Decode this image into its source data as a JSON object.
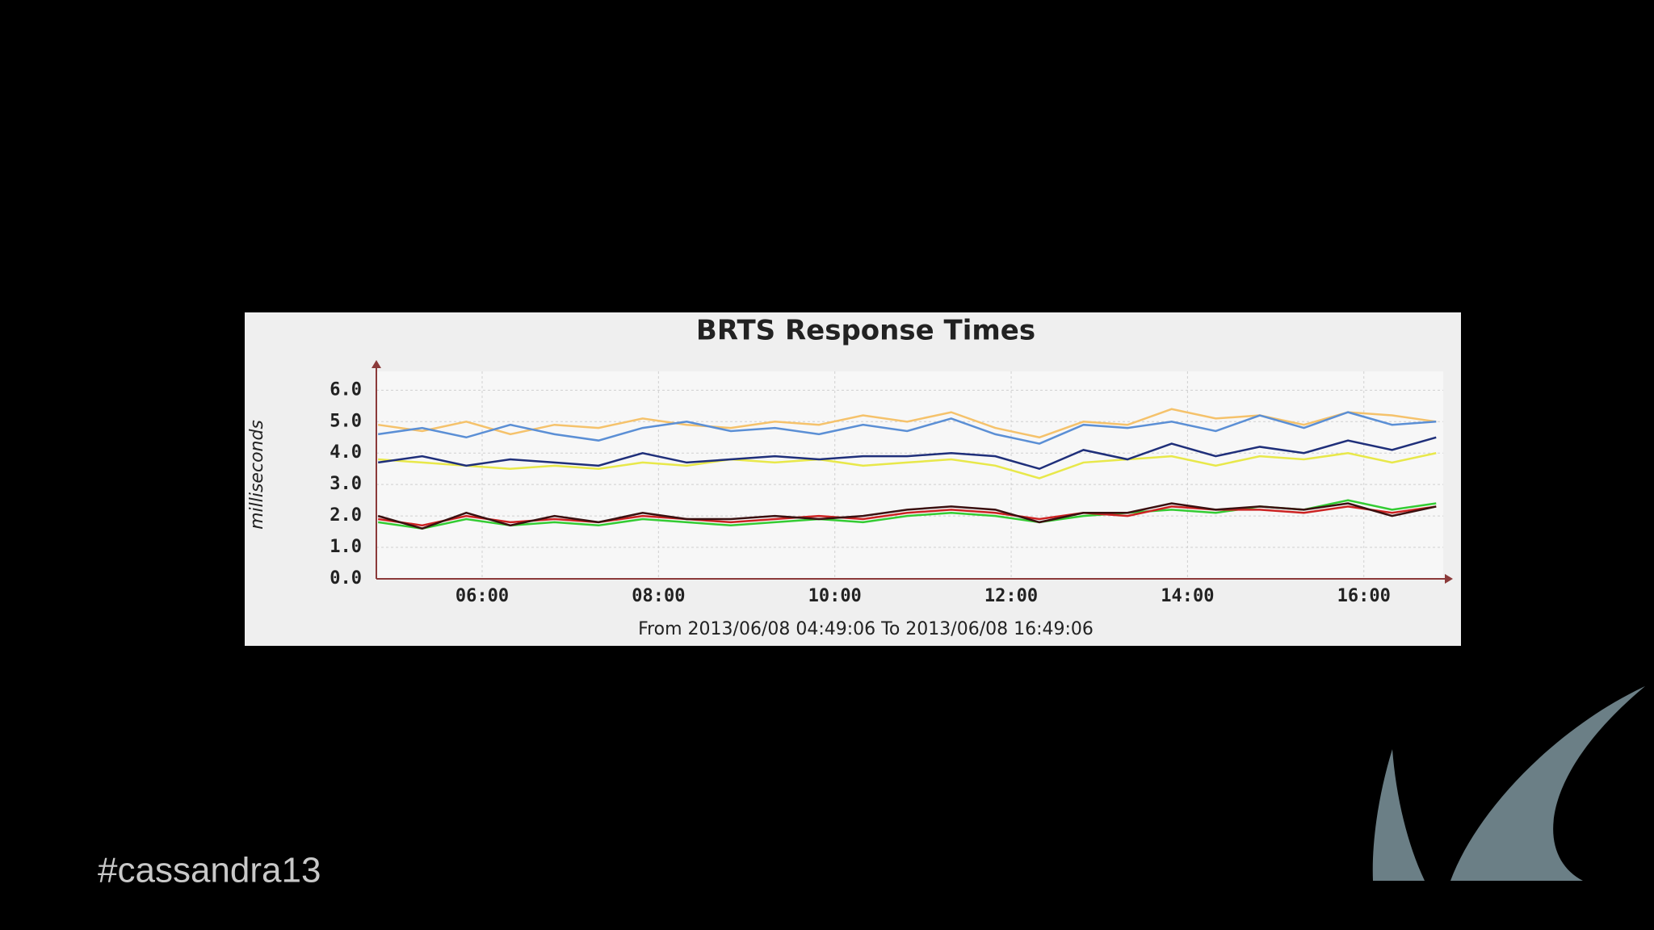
{
  "chart_data": {
    "type": "line",
    "title": "BRTS Response Times",
    "subtitle": "From 2013/06/08 04:49:06 To 2013/06/08 16:49:06",
    "ylabel": "milliseconds",
    "x": [
      4.82,
      5.32,
      5.82,
      6.32,
      6.82,
      7.32,
      7.82,
      8.32,
      8.82,
      9.32,
      9.82,
      10.32,
      10.82,
      11.32,
      11.82,
      12.32,
      12.82,
      13.32,
      13.82,
      14.32,
      14.82,
      15.32,
      15.82,
      16.32,
      16.82
    ],
    "series": [
      {
        "color": "#f5c26b",
        "values": [
          4.9,
          4.7,
          5.0,
          4.6,
          4.9,
          4.8,
          5.1,
          4.9,
          4.8,
          5.0,
          4.9,
          5.2,
          5.0,
          5.3,
          4.8,
          4.5,
          5.0,
          4.9,
          5.4,
          5.1,
          5.2,
          4.9,
          5.3,
          5.2,
          5.0
        ]
      },
      {
        "color": "#5b8fd5",
        "values": [
          4.6,
          4.8,
          4.5,
          4.9,
          4.6,
          4.4,
          4.8,
          5.0,
          4.7,
          4.8,
          4.6,
          4.9,
          4.7,
          5.1,
          4.6,
          4.3,
          4.9,
          4.8,
          5.0,
          4.7,
          5.2,
          4.8,
          5.3,
          4.9,
          5.0
        ]
      },
      {
        "color": "#e8e84a",
        "values": [
          3.8,
          3.7,
          3.6,
          3.5,
          3.6,
          3.5,
          3.7,
          3.6,
          3.8,
          3.7,
          3.8,
          3.6,
          3.7,
          3.8,
          3.6,
          3.2,
          3.7,
          3.8,
          3.9,
          3.6,
          3.9,
          3.8,
          4.0,
          3.7,
          4.0
        ]
      },
      {
        "color": "#1f2f7a",
        "values": [
          3.7,
          3.9,
          3.6,
          3.8,
          3.7,
          3.6,
          4.0,
          3.7,
          3.8,
          3.9,
          3.8,
          3.9,
          3.9,
          4.0,
          3.9,
          3.5,
          4.1,
          3.8,
          4.3,
          3.9,
          4.2,
          4.0,
          4.4,
          4.1,
          4.5
        ]
      },
      {
        "color": "#33cc33",
        "values": [
          1.8,
          1.6,
          1.9,
          1.7,
          1.8,
          1.7,
          1.9,
          1.8,
          1.7,
          1.8,
          1.9,
          1.8,
          2.0,
          2.1,
          2.0,
          1.8,
          2.0,
          2.1,
          2.2,
          2.1,
          2.3,
          2.2,
          2.5,
          2.2,
          2.4
        ]
      },
      {
        "color": "#cc2222",
        "values": [
          1.9,
          1.7,
          2.0,
          1.8,
          1.9,
          1.8,
          2.0,
          1.9,
          1.8,
          1.9,
          2.0,
          1.9,
          2.1,
          2.2,
          2.1,
          1.9,
          2.1,
          2.0,
          2.3,
          2.2,
          2.2,
          2.1,
          2.3,
          2.1,
          2.3
        ]
      },
      {
        "color": "#3a1010",
        "values": [
          2.0,
          1.6,
          2.1,
          1.7,
          2.0,
          1.8,
          2.1,
          1.9,
          1.9,
          2.0,
          1.9,
          2.0,
          2.2,
          2.3,
          2.2,
          1.8,
          2.1,
          2.1,
          2.4,
          2.2,
          2.3,
          2.2,
          2.4,
          2.0,
          2.3
        ]
      }
    ],
    "xlim": [
      4.8,
      16.9
    ],
    "xticks": [
      {
        "value": 6,
        "label": "06:00"
      },
      {
        "value": 8,
        "label": "08:00"
      },
      {
        "value": 10,
        "label": "10:00"
      },
      {
        "value": 12,
        "label": "12:00"
      },
      {
        "value": 14,
        "label": "14:00"
      },
      {
        "value": 16,
        "label": "16:00"
      }
    ],
    "ylim": [
      0,
      6.6
    ],
    "yticks": [
      {
        "value": 0,
        "label": "0.0"
      },
      {
        "value": 1,
        "label": "1.0"
      },
      {
        "value": 2,
        "label": "2.0"
      },
      {
        "value": 3,
        "label": "3.0"
      },
      {
        "value": 4,
        "label": "4.0"
      },
      {
        "value": 5,
        "label": "5.0"
      },
      {
        "value": 6,
        "label": "6.0"
      }
    ],
    "grid": true
  },
  "slide": {
    "hashtag": "#cassandra13"
  }
}
